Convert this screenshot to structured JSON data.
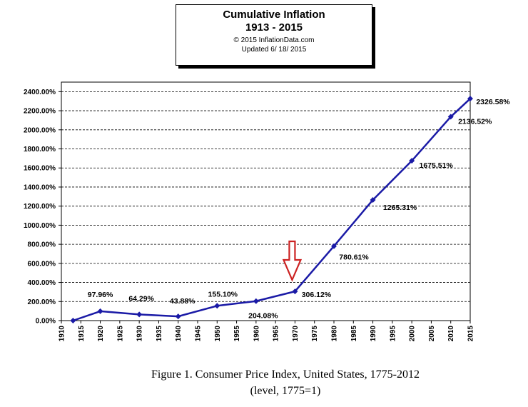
{
  "header": {
    "title": "Cumulative Inflation",
    "subtitle": "1913 - 2015",
    "copyright": "© 2015 InflationData.com",
    "updated": "Updated  6/ 18/ 2015"
  },
  "caption": {
    "line1": "Figure 1. Consumer Price Index, United States, 1775-2012",
    "line2": "(level, 1775=1)"
  },
  "chart_data": {
    "type": "line",
    "title": "Cumulative Inflation",
    "xlim": [
      1910,
      2015
    ],
    "ylim": [
      0,
      2500
    ],
    "x_ticks": [
      1910,
      1915,
      1920,
      1925,
      1930,
      1935,
      1940,
      1945,
      1950,
      1955,
      1960,
      1965,
      1970,
      1975,
      1980,
      1985,
      1990,
      1995,
      2000,
      2005,
      2010,
      2015
    ],
    "y_ticks": [
      {
        "value": 0,
        "label": "0.00%"
      },
      {
        "value": 200,
        "label": "200.00%"
      },
      {
        "value": 400,
        "label": "400.00%"
      },
      {
        "value": 600,
        "label": "600.00%"
      },
      {
        "value": 800,
        "label": "800.00%"
      },
      {
        "value": 1000,
        "label": "1000.00%"
      },
      {
        "value": 1200,
        "label": "1200.00%"
      },
      {
        "value": 1400,
        "label": "1400.00%"
      },
      {
        "value": 1600,
        "label": "1600.00%"
      },
      {
        "value": 1800,
        "label": "1800.00%"
      },
      {
        "value": 2000,
        "label": "2000.00%"
      },
      {
        "value": 2200,
        "label": "2200.00%"
      },
      {
        "value": 2400,
        "label": "2400.00%"
      }
    ],
    "grid": "horizontal dashed",
    "line_color": "#1a1aa6",
    "series": [
      {
        "points": [
          {
            "x": 1913,
            "y": 0,
            "label": ""
          },
          {
            "x": 1920,
            "y": 97.96,
            "label": "97.96%"
          },
          {
            "x": 1930,
            "y": 64.29,
            "label": "64.29%"
          },
          {
            "x": 1940,
            "y": 43.88,
            "label": "43.88%"
          },
          {
            "x": 1950,
            "y": 155.1,
            "label": "155.10%"
          },
          {
            "x": 1960,
            "y": 204.08,
            "label": "204.08%"
          },
          {
            "x": 1970,
            "y": 306.12,
            "label": "306.12%"
          },
          {
            "x": 1980,
            "y": 780.61,
            "label": "780.61%"
          },
          {
            "x": 1990,
            "y": 1265.31,
            "label": "1265.31%"
          },
          {
            "x": 2000,
            "y": 1675.51,
            "label": "1675.51%"
          },
          {
            "x": 2010,
            "y": 2136.52,
            "label": "2136.52%"
          },
          {
            "x": 2015,
            "y": 2326.58,
            "label": "2326.58%"
          }
        ]
      }
    ],
    "annotation": {
      "type": "down-arrow",
      "x": 1970,
      "color": "#cc2222"
    }
  }
}
